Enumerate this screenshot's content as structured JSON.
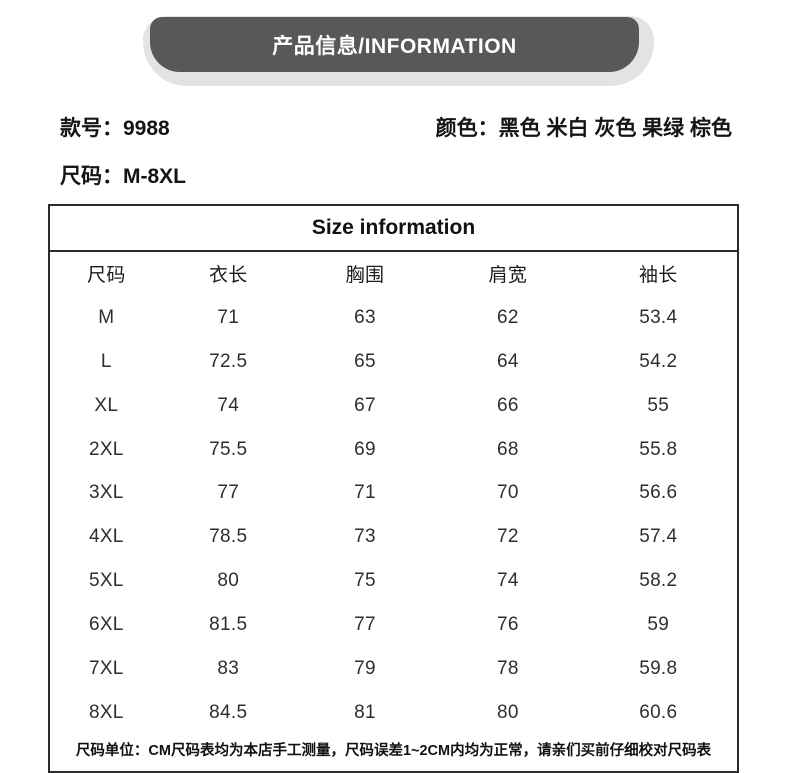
{
  "banner": {
    "title": "产品信息/INFORMATION"
  },
  "product": {
    "style_label": "款号：",
    "style_value": "9988",
    "color_label": "颜色：",
    "color_value": "黑色 米白 灰色 果绿 棕色",
    "size_label": "尺码：",
    "size_value": "M-8XL"
  },
  "size_table": {
    "title": "Size information",
    "columns": [
      "尺码",
      "衣长",
      "胸围",
      "肩宽",
      "袖长"
    ],
    "rows": [
      [
        "M",
        "71",
        "63",
        "62",
        "53.4"
      ],
      [
        "L",
        "72.5",
        "65",
        "64",
        "54.2"
      ],
      [
        "XL",
        "74",
        "67",
        "66",
        "55"
      ],
      [
        "2XL",
        "75.5",
        "69",
        "68",
        "55.8"
      ],
      [
        "3XL",
        "77",
        "71",
        "70",
        "56.6"
      ],
      [
        "4XL",
        "78.5",
        "73",
        "72",
        "57.4"
      ],
      [
        "5XL",
        "80",
        "75",
        "74",
        "58.2"
      ],
      [
        "6XL",
        "81.5",
        "77",
        "76",
        "59"
      ],
      [
        "7XL",
        "83",
        "79",
        "78",
        "59.8"
      ],
      [
        "8XL",
        "84.5",
        "81",
        "80",
        "60.6"
      ]
    ],
    "note": "尺码单位：CM尺码表均为本店手工测量，尺码误差1~2CM内均为正常，请亲们买前仔细校对尺码表"
  },
  "colors": {
    "banner_dark": "#595757",
    "banner_light": "#e3e3e3",
    "text": "#151515",
    "border": "#2b2b2b",
    "data_text": "#2e2e2e"
  }
}
